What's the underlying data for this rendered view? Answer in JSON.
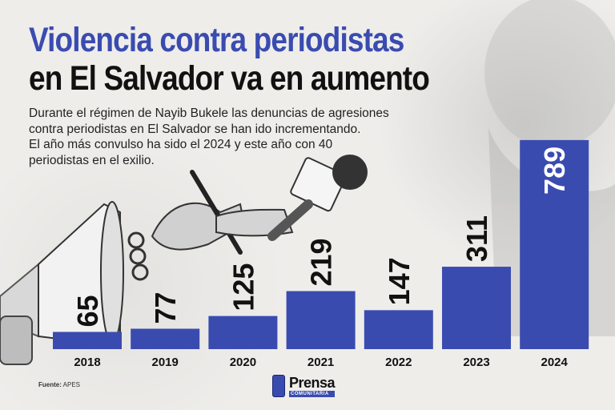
{
  "header": {
    "title_line1": "Violencia contra periodistas",
    "title_line2": "en El Salvador va en aumento",
    "subtitle_lines": [
      "Durante el régimen de Nayib Bukele las denuncias de agresiones",
      "contra periodistas en El Salvador se han ido incrementando.",
      "El año más convulso ha sido el 2024 y este año con 40",
      "periodistas en el exilio."
    ]
  },
  "chart_data": {
    "type": "bar",
    "categories": [
      "2018",
      "2019",
      "2020",
      "2021",
      "2022",
      "2023",
      "2024"
    ],
    "values": [
      65,
      77,
      125,
      219,
      147,
      311,
      789
    ],
    "title": "Violencia contra periodistas en El Salvador va en aumento",
    "xlabel": "",
    "ylabel": "",
    "ylim": [
      0,
      840
    ],
    "grid": false,
    "legend": "none",
    "bar_color": "#3a4bb0"
  },
  "footer": {
    "source_label": "Fuente:",
    "source_value": "APES",
    "logo_main": "Prensa",
    "logo_sub": "COMUNITARIA"
  },
  "colors": {
    "accent": "#3a4bb0",
    "text": "#111111"
  }
}
